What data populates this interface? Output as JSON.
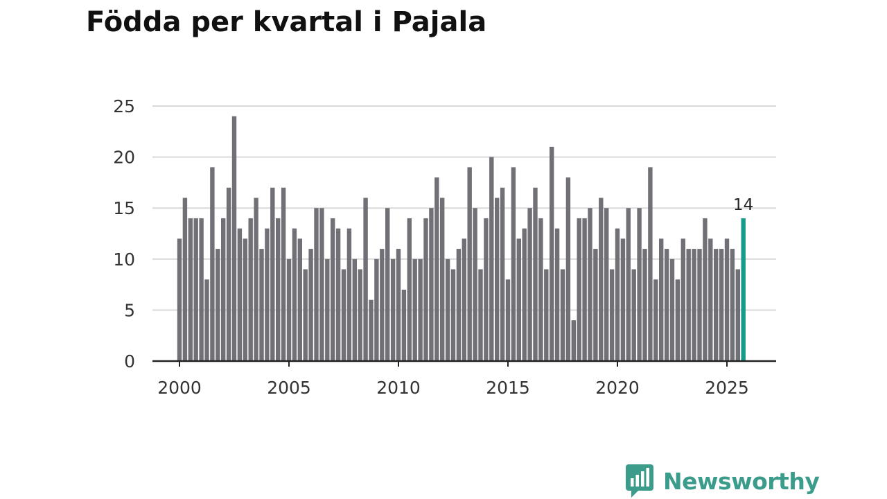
{
  "chart_data": {
    "type": "bar",
    "title": "Födda per kvartal i Pajala",
    "xlabel": "",
    "ylabel": "",
    "start_year": 2000,
    "periods_per_year": 4,
    "xticks": [
      "2000",
      "2005",
      "2010",
      "2015",
      "2020",
      "2025"
    ],
    "yticks": [
      "0",
      "5",
      "10",
      "15",
      "20",
      "25"
    ],
    "ylim": [
      0,
      25
    ],
    "grid": true,
    "values": [
      12,
      16,
      14,
      14,
      14,
      8,
      19,
      11,
      14,
      17,
      24,
      13,
      12,
      14,
      16,
      11,
      13,
      17,
      14,
      17,
      10,
      13,
      12,
      9,
      11,
      15,
      15,
      10,
      14,
      13,
      9,
      13,
      10,
      9,
      16,
      6,
      10,
      11,
      15,
      10,
      11,
      7,
      14,
      10,
      10,
      14,
      15,
      18,
      16,
      10,
      9,
      11,
      12,
      19,
      15,
      9,
      14,
      20,
      16,
      17,
      8,
      19,
      12,
      13,
      15,
      17,
      14,
      9,
      21,
      13,
      9,
      18,
      4,
      14,
      14,
      15,
      11,
      16,
      15,
      9,
      13,
      12,
      15,
      9,
      15,
      11,
      19,
      8,
      12,
      11,
      10,
      8,
      12,
      11,
      11,
      11,
      14,
      12,
      11,
      11,
      12,
      11,
      9,
      14
    ],
    "highlight_label": "14",
    "colors": {
      "bar": "#717076",
      "highlight": "#179a8a",
      "grid": "#d9d9d9",
      "axis": "#222222"
    }
  },
  "branding": {
    "logo_text": "Newsworthy",
    "logo_icon": "bar-chart-speech-bubble-icon",
    "color": "#3b9c8c"
  }
}
